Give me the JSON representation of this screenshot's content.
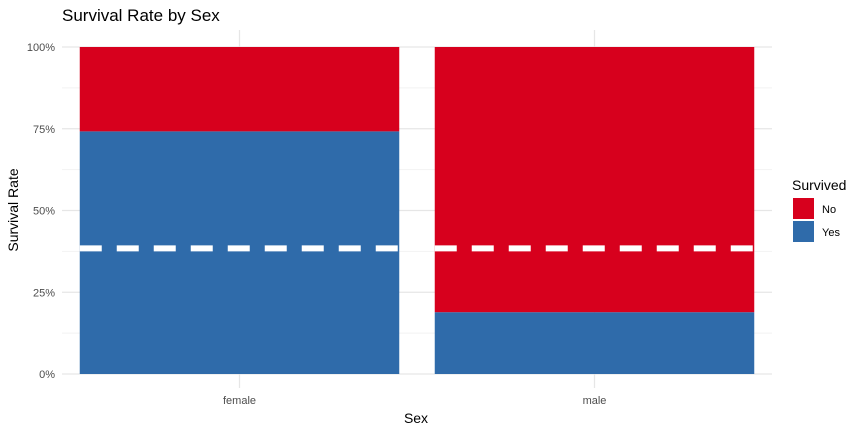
{
  "chart_data": {
    "type": "bar",
    "stacked": true,
    "normalized": true,
    "title": "Survival Rate by Sex",
    "xlabel": "Sex",
    "ylabel": "Survival Rate",
    "categories": [
      "female",
      "male"
    ],
    "series": [
      {
        "name": "No",
        "values": [
          0.258,
          0.811
        ],
        "color": "#D7001D"
      },
      {
        "name": "Yes",
        "values": [
          0.742,
          0.189
        ],
        "color": "#2F6BAA"
      }
    ],
    "yticks": [
      {
        "value": 0.0,
        "label": "0%"
      },
      {
        "value": 0.25,
        "label": "25%"
      },
      {
        "value": 0.5,
        "label": "50%"
      },
      {
        "value": 0.75,
        "label": "75%"
      },
      {
        "value": 1.0,
        "label": "100%"
      }
    ],
    "ylim": [
      0,
      1
    ],
    "reference_line": {
      "value": 0.384,
      "style": "dashed",
      "color": "#FFFFFF"
    },
    "legend": {
      "title": "Survived",
      "placement": "right",
      "items": [
        {
          "label": "No",
          "color": "#D7001D"
        },
        {
          "label": "Yes",
          "color": "#2F6BAA"
        }
      ]
    },
    "grid": true,
    "colors": {
      "grid_major": "#E6E6E6",
      "grid_minor": "#F2F2F2",
      "tick_text": "#4D4D4D",
      "title_text": "#000000"
    }
  }
}
